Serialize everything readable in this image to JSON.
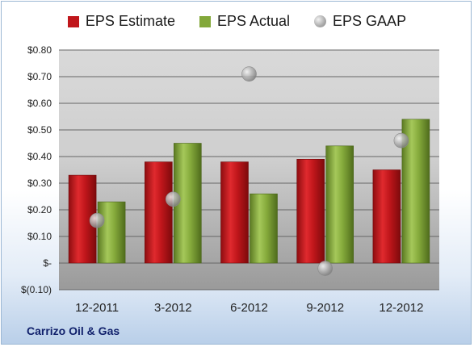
{
  "chart_data": {
    "type": "bar",
    "categories": [
      "12-2011",
      "3-2012",
      "6-2012",
      "9-2012",
      "12-2012"
    ],
    "series": [
      {
        "name": "EPS Estimate",
        "kind": "bar",
        "color": "#c0161b",
        "values": [
          0.33,
          0.38,
          0.38,
          0.39,
          0.35
        ]
      },
      {
        "name": "EPS Actual",
        "kind": "bar",
        "color": "#83a83a",
        "values": [
          0.23,
          0.45,
          0.26,
          0.44,
          0.54
        ]
      },
      {
        "name": "EPS GAAP",
        "kind": "scatter",
        "color": "#a0a0a0",
        "values": [
          0.16,
          0.24,
          0.71,
          -0.02,
          0.46
        ]
      }
    ],
    "yticks": [
      "$(0.10)",
      "$-",
      "$0.10",
      "$0.20",
      "$0.30",
      "$0.40",
      "$0.50",
      "$0.60",
      "$0.70",
      "$0.80"
    ],
    "ylim": [
      -0.1,
      0.8
    ],
    "grid": true,
    "legend_position": "top"
  },
  "footer": {
    "company": "Carrizo Oil & Gas"
  }
}
